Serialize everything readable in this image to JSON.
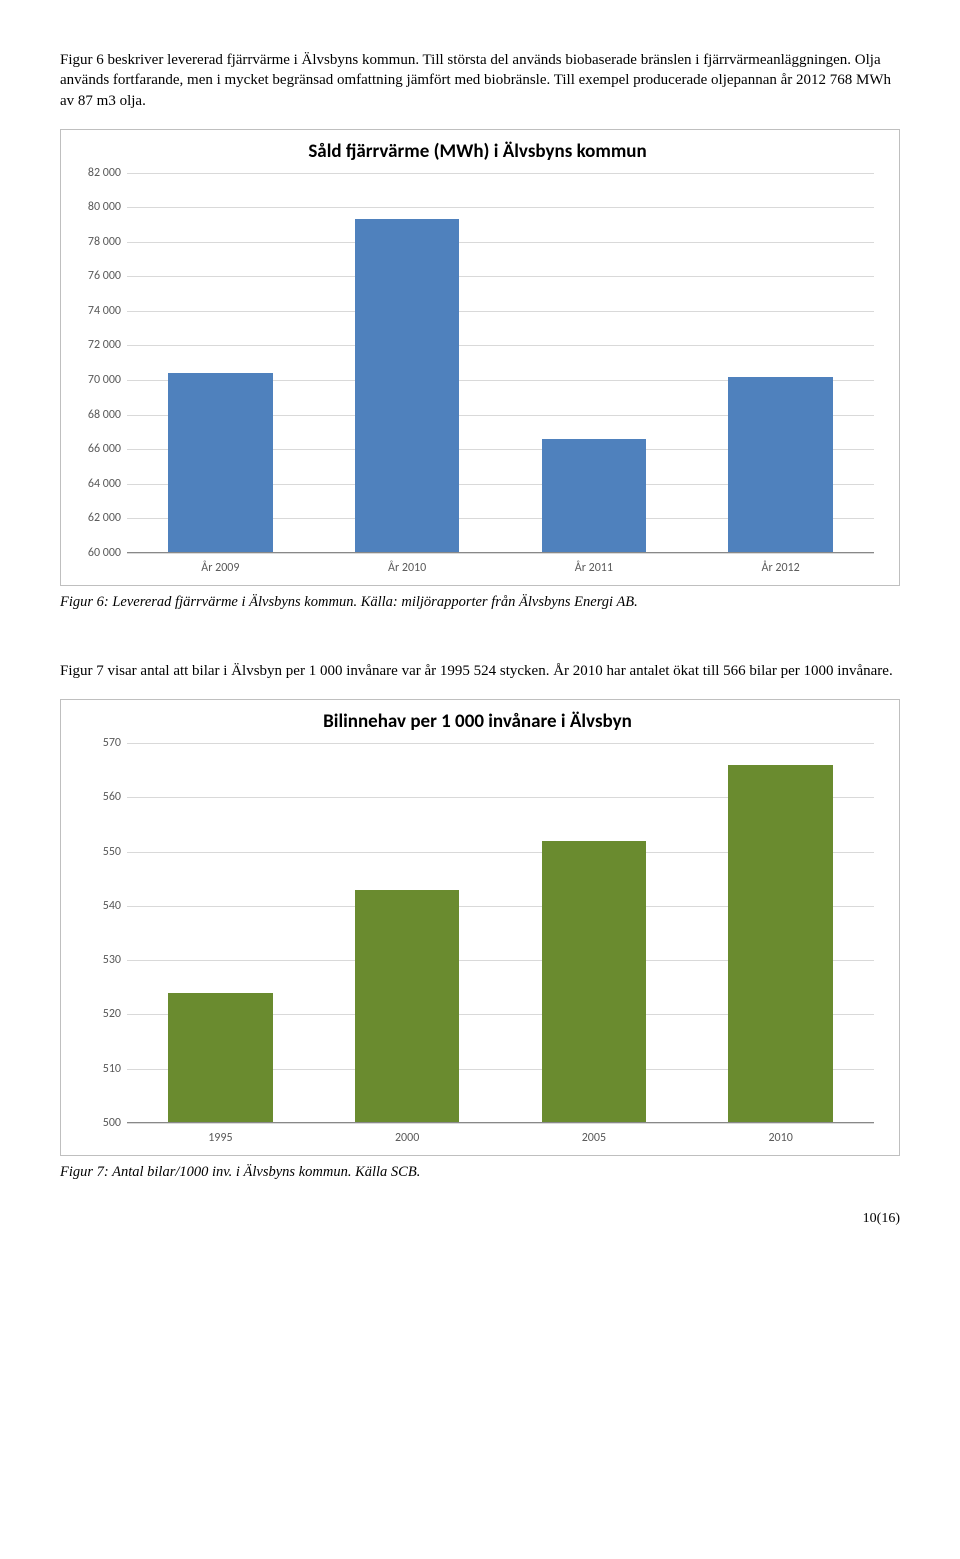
{
  "para1": "Figur 6 beskriver levererad fjärrvärme i Älvsbyns kommun. Till största del används biobaserade bränslen i fjärrvärmeanläggningen. Olja används fortfarande, men i mycket begränsad omfattning jämfört med biobränsle. Till exempel producerade oljepannan år 2012 768 MWh av 87 m3 olja.",
  "chart1": {
    "title": "Såld fjärrvärme (MWh) i Älvsbyns kommun",
    "categories": [
      "År 2009",
      "År 2010",
      "År 2011",
      "År 2012"
    ],
    "values": [
      70400,
      79300,
      66600,
      70200
    ],
    "ymin": 60000,
    "ymax": 82000,
    "ystep": 2000,
    "bar_color": "#4f81bd",
    "grid_color": "#d9d9d9",
    "bg": "#ffffff"
  },
  "caption1": "Figur 6: Levererad fjärrvärme i Älvsbyns kommun. Källa: miljörapporter från Älvsbyns Energi AB.",
  "para2": "Figur 7 visar antal att bilar i Älvsbyn per 1 000 invånare var år 1995 524 stycken. År 2010 har antalet ökat till 566 bilar per 1000 invånare.",
  "chart2": {
    "title": "Bilinnehav per 1 000 invånare i Älvsbyn",
    "categories": [
      "1995",
      "2000",
      "2005",
      "2010"
    ],
    "values": [
      524,
      543,
      552,
      566
    ],
    "ymin": 500,
    "ymax": 570,
    "ystep": 10,
    "bar_color": "#6a8b2f",
    "grid_color": "#d9d9d9",
    "bg": "#ffffff"
  },
  "caption2": "Figur 7: Antal bilar/1000 inv. i Älvsbyns kommun. Källa SCB.",
  "pageno": "10(16)"
}
